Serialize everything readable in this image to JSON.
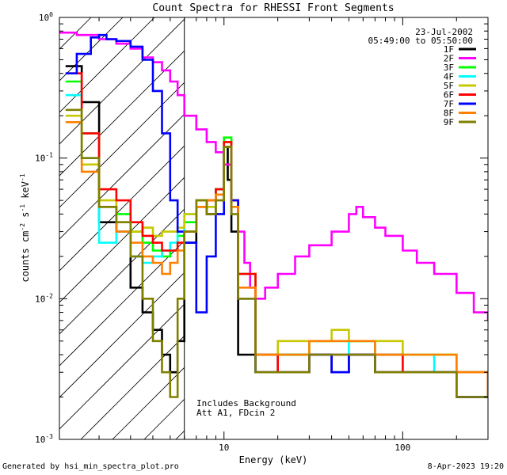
{
  "footer": {
    "generated": "Generated by hsi_min_spectra_plot.pro",
    "timestamp": "8-Apr-2023 19:20"
  },
  "chart_data": {
    "type": "line",
    "title": "Count Spectra for RHESSI Front Segments",
    "xlabel": "Energy (keV)",
    "ylabel": "counts cm^-2 s^-1 keV^-1",
    "xscale": "log",
    "yscale": "log",
    "xlim": [
      1.2,
      300
    ],
    "ylim": [
      0.001,
      1.0
    ],
    "x_ticks": [
      {
        "value": 10,
        "label": "10"
      },
      {
        "value": 100,
        "label": "100"
      }
    ],
    "y_ticks": [
      {
        "value": 0.001,
        "base": "10",
        "exp": "-3"
      },
      {
        "value": 0.01,
        "base": "10",
        "exp": "-2"
      },
      {
        "value": 0.1,
        "base": "10",
        "exp": "-1"
      },
      {
        "value": 1.0,
        "base": "10",
        "exp": "0"
      }
    ],
    "hatch_region": {
      "xmin": 1.2,
      "xmax": 6.0
    },
    "date": "23-Jul-2002",
    "time_range": "05:49:00 to 05:50:00",
    "annotation": [
      "Includes Background",
      "Att A1, FDcin 2"
    ],
    "legend_position": "top-right",
    "series": [
      {
        "name": "1F",
        "color": "#000000",
        "x": [
          1.3,
          1.6,
          2.0,
          2.5,
          3.0,
          3.5,
          4.0,
          4.5,
          5.0,
          5.5,
          6.0,
          7.0,
          8.0,
          9.0,
          10.0,
          10.5,
          11.0,
          12.0,
          15.0,
          20.0,
          30.0,
          40.0,
          50.0,
          70.0,
          100.0,
          150.0,
          200.0,
          250.0,
          300.0
        ],
        "y": [
          0.45,
          0.25,
          0.035,
          0.03,
          0.012,
          0.008,
          0.006,
          0.004,
          0.003,
          0.005,
          0.025,
          0.05,
          0.04,
          0.06,
          0.12,
          0.07,
          0.03,
          0.004,
          0.003,
          0.004,
          0.004,
          0.003,
          0.004,
          0.003,
          0.003,
          0.003,
          0.002,
          0.002,
          0.002
        ]
      },
      {
        "name": "2F",
        "color": "#ff00ff",
        "x": [
          1.2,
          1.5,
          2.0,
          2.5,
          3.0,
          3.5,
          4.0,
          4.5,
          5.0,
          5.5,
          6.0,
          7.0,
          8.0,
          9.0,
          10.0,
          11.0,
          12.0,
          13.0,
          14.0,
          15.0,
          17.0,
          20.0,
          25.0,
          30.0,
          40.0,
          50.0,
          55.0,
          60.0,
          70.0,
          80.0,
          100.0,
          120.0,
          150.0,
          200.0,
          250.0,
          300.0
        ],
        "y": [
          0.78,
          0.75,
          0.7,
          0.65,
          0.6,
          0.52,
          0.48,
          0.42,
          0.35,
          0.28,
          0.2,
          0.16,
          0.13,
          0.11,
          0.09,
          0.05,
          0.03,
          0.018,
          0.012,
          0.01,
          0.012,
          0.015,
          0.02,
          0.024,
          0.03,
          0.04,
          0.045,
          0.038,
          0.032,
          0.028,
          0.022,
          0.018,
          0.015,
          0.011,
          0.008,
          0.007
        ]
      },
      {
        "name": "3F",
        "color": "#00ff00",
        "x": [
          1.3,
          1.6,
          2.0,
          2.5,
          3.0,
          3.5,
          4.0,
          4.5,
          5.0,
          5.5,
          6.0,
          7.0,
          8.0,
          9.0,
          10.0,
          11.0,
          12.0,
          15.0,
          20.0,
          30.0,
          40.0,
          50.0,
          70.0,
          100.0,
          150.0,
          200.0,
          300.0
        ],
        "y": [
          0.35,
          0.15,
          0.045,
          0.04,
          0.03,
          0.025,
          0.022,
          0.02,
          0.022,
          0.028,
          0.035,
          0.045,
          0.05,
          0.06,
          0.14,
          0.05,
          0.015,
          0.004,
          0.004,
          0.005,
          0.005,
          0.005,
          0.004,
          0.004,
          0.004,
          0.003,
          0.002
        ]
      },
      {
        "name": "4F",
        "color": "#00ffff",
        "x": [
          1.3,
          1.6,
          2.0,
          2.5,
          3.0,
          3.5,
          4.0,
          4.5,
          5.0,
          5.5,
          6.0,
          7.0,
          8.0,
          9.0,
          10.0,
          11.0,
          12.0,
          15.0,
          20.0,
          30.0,
          40.0,
          50.0,
          70.0,
          100.0,
          150.0,
          200.0,
          300.0
        ],
        "y": [
          0.28,
          0.1,
          0.025,
          0.03,
          0.02,
          0.018,
          0.02,
          0.022,
          0.025,
          0.03,
          0.04,
          0.05,
          0.045,
          0.055,
          0.12,
          0.05,
          0.015,
          0.004,
          0.003,
          0.004,
          0.004,
          0.005,
          0.004,
          0.004,
          0.003,
          0.003,
          0.002
        ]
      },
      {
        "name": "5F",
        "color": "#c8c800",
        "x": [
          1.3,
          1.6,
          2.0,
          2.5,
          3.0,
          3.5,
          4.0,
          4.5,
          5.0,
          5.5,
          6.0,
          7.0,
          8.0,
          9.0,
          10.0,
          11.0,
          12.0,
          15.0,
          20.0,
          30.0,
          40.0,
          50.0,
          70.0,
          100.0,
          150.0,
          200.0,
          300.0
        ],
        "y": [
          0.2,
          0.09,
          0.05,
          0.035,
          0.03,
          0.032,
          0.028,
          0.03,
          0.03,
          0.032,
          0.04,
          0.05,
          0.045,
          0.05,
          0.13,
          0.05,
          0.015,
          0.004,
          0.005,
          0.005,
          0.006,
          0.005,
          0.005,
          0.004,
          0.004,
          0.003,
          0.003
        ]
      },
      {
        "name": "6F",
        "color": "#ff0000",
        "x": [
          1.3,
          1.6,
          2.0,
          2.5,
          3.0,
          3.5,
          4.0,
          4.5,
          5.0,
          5.5,
          6.0,
          7.0,
          8.0,
          9.0,
          10.0,
          11.0,
          12.0,
          15.0,
          20.0,
          30.0,
          40.0,
          50.0,
          70.0,
          100.0,
          150.0,
          200.0,
          300.0
        ],
        "y": [
          0.4,
          0.15,
          0.06,
          0.05,
          0.035,
          0.028,
          0.025,
          0.022,
          0.022,
          0.025,
          0.03,
          0.045,
          0.05,
          0.06,
          0.13,
          0.05,
          0.015,
          0.004,
          0.003,
          0.004,
          0.004,
          0.004,
          0.004,
          0.003,
          0.003,
          0.003,
          0.002
        ]
      },
      {
        "name": "7F",
        "color": "#0000ff",
        "x": [
          1.3,
          1.5,
          1.8,
          2.0,
          2.2,
          2.5,
          3.0,
          3.5,
          4.0,
          4.5,
          5.0,
          5.5,
          6.0,
          7.0,
          8.0,
          9.0,
          10.0,
          11.0,
          12.0,
          15.0,
          20.0,
          30.0,
          40.0,
          50.0,
          70.0,
          100.0,
          150.0,
          200.0,
          300.0
        ],
        "y": [
          0.4,
          0.55,
          0.72,
          0.75,
          0.7,
          0.68,
          0.62,
          0.5,
          0.3,
          0.15,
          0.05,
          0.03,
          0.025,
          0.008,
          0.02,
          0.04,
          0.12,
          0.05,
          0.01,
          0.003,
          0.003,
          0.004,
          0.003,
          0.004,
          0.003,
          0.003,
          0.003,
          0.002,
          0.002
        ]
      },
      {
        "name": "8F",
        "color": "#ff8000",
        "x": [
          1.3,
          1.6,
          2.0,
          2.5,
          3.0,
          3.5,
          4.0,
          4.5,
          5.0,
          5.5,
          6.0,
          7.0,
          8.0,
          9.0,
          10.0,
          11.0,
          12.0,
          15.0,
          20.0,
          30.0,
          40.0,
          50.0,
          70.0,
          100.0,
          150.0,
          200.0,
          300.0
        ],
        "y": [
          0.18,
          0.08,
          0.045,
          0.03,
          0.025,
          0.02,
          0.018,
          0.015,
          0.018,
          0.022,
          0.03,
          0.045,
          0.05,
          0.055,
          0.12,
          0.045,
          0.012,
          0.004,
          0.004,
          0.005,
          0.005,
          0.005,
          0.004,
          0.004,
          0.004,
          0.003,
          0.002
        ]
      },
      {
        "name": "9F",
        "color": "#808000",
        "x": [
          1.3,
          1.6,
          2.0,
          2.5,
          3.0,
          3.5,
          4.0,
          4.5,
          5.0,
          5.5,
          6.0,
          7.0,
          8.0,
          9.0,
          10.0,
          11.0,
          12.0,
          15.0,
          20.0,
          30.0,
          40.0,
          50.0,
          70.0,
          100.0,
          150.0,
          200.0,
          300.0
        ],
        "y": [
          0.22,
          0.1,
          0.045,
          0.035,
          0.02,
          0.01,
          0.005,
          0.003,
          0.002,
          0.01,
          0.03,
          0.05,
          0.04,
          0.05,
          0.12,
          0.04,
          0.01,
          0.003,
          0.003,
          0.004,
          0.004,
          0.004,
          0.003,
          0.003,
          0.003,
          0.002,
          0.002
        ]
      }
    ]
  }
}
